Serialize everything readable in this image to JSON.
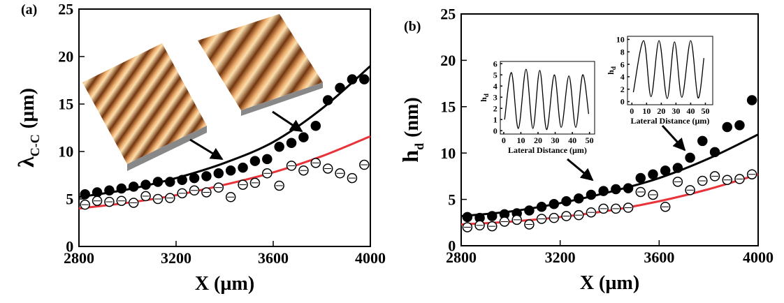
{
  "chart_data": [
    {
      "type": "scatter",
      "panel_label": "(a)",
      "xlabel": "X (µm)",
      "ylabel": [
        "λ",
        "C-C",
        "(µm)"
      ],
      "xlim": [
        2800,
        4000
      ],
      "xticks": [
        2800,
        3200,
        3600,
        4000
      ],
      "ylim": [
        0,
        25
      ],
      "yticks": [
        0,
        5,
        10,
        15,
        20,
        25
      ],
      "x": [
        2825,
        2875,
        2925,
        2975,
        3025,
        3075,
        3125,
        3175,
        3225,
        3275,
        3325,
        3375,
        3425,
        3475,
        3525,
        3575,
        3625,
        3675,
        3725,
        3775,
        3825,
        3875,
        3925,
        3975
      ],
      "series": [
        {
          "style": "filled",
          "color": "#000000",
          "values": [
            5.5,
            5.7,
            5.9,
            6.1,
            6.3,
            6.5,
            6.8,
            6.8,
            7.0,
            7.2,
            7.4,
            7.7,
            8.0,
            8.3,
            9.0,
            9.2,
            10.5,
            10.9,
            11.5,
            12.7,
            15.4,
            16.7,
            17.6,
            17.6
          ]
        },
        {
          "style": "open",
          "color": "#000000",
          "values": [
            4.4,
            4.8,
            4.7,
            4.8,
            4.6,
            5.3,
            5.0,
            5.1,
            5.6,
            5.9,
            5.7,
            6.2,
            5.2,
            6.5,
            6.7,
            7.7,
            6.4,
            8.5,
            8.0,
            8.8,
            8.2,
            7.7,
            7.2,
            8.6
          ]
        }
      ],
      "fits": [
        {
          "color": "#000000",
          "x": [
            2800,
            3000,
            3200,
            3400,
            3600,
            3800,
            4000
          ],
          "values": [
            5.2,
            6.0,
            7.2,
            8.8,
            11.0,
            14.5,
            19.0
          ]
        },
        {
          "color": "#e8333a",
          "x": [
            2800,
            3000,
            3200,
            3400,
            3600,
            3800,
            4000
          ],
          "values": [
            4.0,
            4.6,
            5.4,
            6.5,
            7.8,
            9.5,
            11.6
          ]
        }
      ],
      "insets": []
    },
    {
      "type": "scatter",
      "panel_label": "(b)",
      "xlabel": "X (µm)",
      "ylabel": [
        "h",
        "d",
        "(nm)"
      ],
      "xlim": [
        2800,
        4000
      ],
      "xticks": [
        2800,
        3200,
        3600,
        4000
      ],
      "ylim": [
        0,
        25
      ],
      "yticks": [
        0,
        5,
        10,
        15,
        20,
        25
      ],
      "x": [
        2825,
        2875,
        2925,
        2975,
        3025,
        3075,
        3125,
        3175,
        3225,
        3275,
        3325,
        3375,
        3425,
        3475,
        3525,
        3575,
        3625,
        3675,
        3725,
        3775,
        3825,
        3875,
        3925,
        3975
      ],
      "series": [
        {
          "style": "filled",
          "color": "#000000",
          "values": [
            3.1,
            3.0,
            3.2,
            3.4,
            3.5,
            3.8,
            4.2,
            4.5,
            4.8,
            5.1,
            5.5,
            5.9,
            6.1,
            6.2,
            7.3,
            7.7,
            8.1,
            8.4,
            9.5,
            11.3,
            10.1,
            12.8,
            13.0,
            15.7
          ]
        },
        {
          "style": "open",
          "color": "#000000",
          "values": [
            2.0,
            2.2,
            2.1,
            2.6,
            2.8,
            2.3,
            2.9,
            3.0,
            3.2,
            3.3,
            3.6,
            4.0,
            4.0,
            4.1,
            5.8,
            5.5,
            4.2,
            6.9,
            6.0,
            7.0,
            7.5,
            7.1,
            7.2,
            7.7
          ]
        }
      ],
      "fits": [
        {
          "color": "#000000",
          "x": [
            2800,
            3000,
            3200,
            3400,
            3600,
            3800,
            4000
          ],
          "values": [
            3.2,
            3.7,
            4.6,
            5.8,
            7.3,
            9.4,
            12.0
          ]
        },
        {
          "color": "#e8333a",
          "x": [
            2800,
            3000,
            3200,
            3400,
            3600,
            3800,
            4000
          ],
          "values": [
            2.3,
            2.6,
            3.1,
            3.8,
            4.8,
            6.1,
            7.7
          ]
        }
      ],
      "insets": [
        {
          "type": "line",
          "xlabel": "Lateral Distance (µm)",
          "ylabel": [
            "h",
            "d"
          ],
          "xlim": [
            -2,
            53
          ],
          "xticks": [
            0,
            10,
            20,
            30,
            40,
            50
          ],
          "ylim": [
            -0.3,
            6.2
          ],
          "yticks": [
            0,
            1,
            2,
            3,
            4,
            5,
            6
          ],
          "x": [
            0.5,
            4.5,
            8.5,
            13,
            17,
            21,
            25,
            29.5,
            33.5,
            38,
            42,
            46,
            49.5
          ],
          "values": [
            1.0,
            5.2,
            0.2,
            5.5,
            0.2,
            5.4,
            0.1,
            5.0,
            0.3,
            4.9,
            0.3,
            5.0,
            1.5
          ]
        },
        {
          "type": "line",
          "xlabel": "Lateral Distance (µm)",
          "ylabel": [
            "h",
            "d"
          ],
          "xlim": [
            -3,
            55
          ],
          "xticks": [
            0,
            10,
            20,
            30,
            40,
            50
          ],
          "ylim": [
            -0.5,
            10.5
          ],
          "yticks": [
            0,
            2,
            4,
            6,
            8,
            10
          ],
          "x": [
            1,
            8,
            13,
            18.5,
            24,
            29,
            34,
            40,
            45,
            49
          ],
          "values": [
            1.5,
            9.8,
            0.8,
            9.8,
            0.5,
            9.6,
            0.7,
            9.8,
            0.6,
            7.0
          ]
        }
      ]
    }
  ]
}
